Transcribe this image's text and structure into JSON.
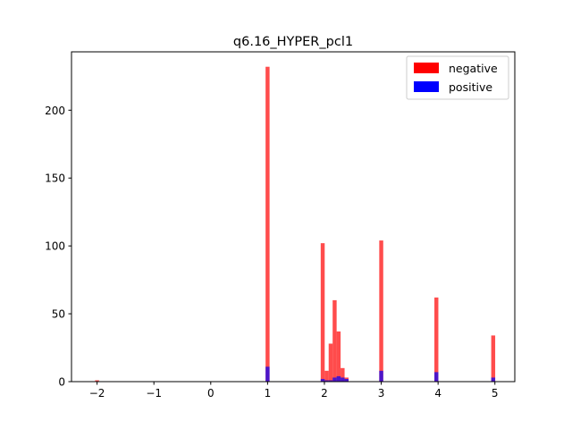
{
  "chart_data": {
    "type": "bar",
    "subtype": "overlaid histogram",
    "title": "q6.16_HYPER_pcl1",
    "xlabel": "",
    "ylabel": "",
    "xlim": [
      -2.45,
      5.35
    ],
    "ylim": [
      0,
      243
    ],
    "x_ticks": [
      -2,
      -1,
      0,
      1,
      2,
      3,
      4,
      5
    ],
    "x_tick_labels": [
      "−2",
      "−1",
      "0",
      "1",
      "2",
      "3",
      "4",
      "5"
    ],
    "y_ticks": [
      0,
      50,
      100,
      150,
      200
    ],
    "y_tick_labels": [
      "0",
      "50",
      "100",
      "150",
      "200"
    ],
    "bin_width": 0.07,
    "grid": false,
    "legend_position": "top-right",
    "series": [
      {
        "name": "negative",
        "color": "#ff0000",
        "opacity": 0.7,
        "bins": [
          {
            "x": -2.0,
            "count": 1
          },
          {
            "x": 1.0,
            "count": 232
          },
          {
            "x": 1.97,
            "count": 102
          },
          {
            "x": 2.04,
            "count": 8
          },
          {
            "x": 2.11,
            "count": 28
          },
          {
            "x": 2.18,
            "count": 60
          },
          {
            "x": 2.25,
            "count": 37
          },
          {
            "x": 2.32,
            "count": 10
          },
          {
            "x": 2.39,
            "count": 3
          },
          {
            "x": 3.0,
            "count": 104
          },
          {
            "x": 3.97,
            "count": 62
          },
          {
            "x": 4.97,
            "count": 34
          }
        ]
      },
      {
        "name": "positive",
        "color": "#0000ff",
        "opacity": 0.7,
        "bins": [
          {
            "x": 1.0,
            "count": 11
          },
          {
            "x": 1.97,
            "count": 2
          },
          {
            "x": 2.04,
            "count": 1
          },
          {
            "x": 2.11,
            "count": 1
          },
          {
            "x": 2.18,
            "count": 3
          },
          {
            "x": 2.25,
            "count": 4
          },
          {
            "x": 2.32,
            "count": 3
          },
          {
            "x": 2.39,
            "count": 2
          },
          {
            "x": 3.0,
            "count": 8
          },
          {
            "x": 3.97,
            "count": 7
          },
          {
            "x": 4.97,
            "count": 3
          }
        ]
      }
    ]
  }
}
